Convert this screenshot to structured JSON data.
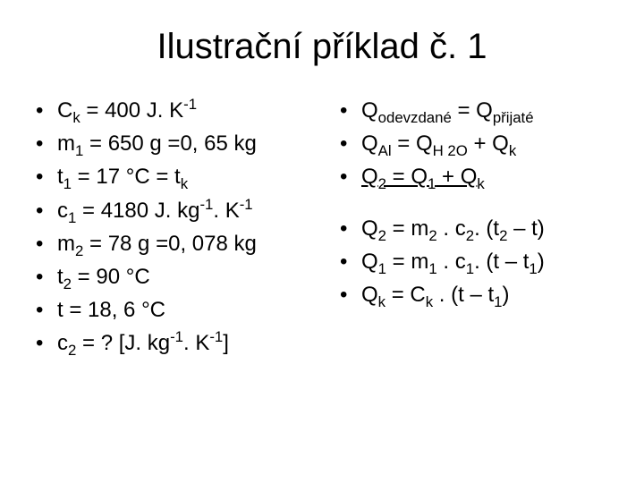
{
  "title": "Ilustrační příklad č. 1",
  "left": {
    "l1": {
      "var": "C",
      "sub": "k",
      "rest": "  = 400 J. K",
      "sup": "-1"
    },
    "l2": {
      "var": "m",
      "sub": "1",
      "rest": " = 650 g =0, 65 kg"
    },
    "l3": {
      "var": "t",
      "sub": "1",
      "rest": "   = 17 °C = t",
      "sub2": "k"
    },
    "l4": {
      "var": "c",
      "sub": "1",
      "rest": "   = 4180 J. kg",
      "sup": "-1",
      "rest2": ". K",
      "sup2": "-1"
    },
    "l5": {
      "var": "m",
      "sub": "2",
      "rest": " = 78 g =0, 078 kg"
    },
    "l6": {
      "var": "t",
      "sub": "2",
      "rest": "   = 90 °C"
    },
    "l7": {
      "var": "t    = 18, 6 °C"
    },
    "l8": {
      "var": "c",
      "sub": "2",
      "rest": "   = ? [J. kg",
      "sup": "-1",
      "rest2": ". K",
      "sup2": "-1",
      "tail": "]"
    }
  },
  "right": {
    "r1": {
      "a": "Q",
      "as": "odevzdané",
      "eq": " = Q",
      "bs": "přijaté"
    },
    "r2": {
      "a": "Q",
      "as": "Al",
      "eq": " = Q",
      "bs": "H 2O",
      "plus": " + Q",
      "cs": "k"
    },
    "r3": {
      "a": "Q",
      "as": "2",
      "eq": " = Q",
      "bs": "1",
      "plus": " + Q",
      "cs": "k"
    },
    "r4": {
      "txt1": "Q",
      "s1": "2",
      "txt2": " = m",
      "s2": "2",
      "txt3": " . c",
      "s3": "2",
      "txt4": ". (t",
      "s4": "2",
      "txt5": " – t)"
    },
    "r5": {
      "txt1": "Q",
      "s1": "1",
      "txt2": " = m",
      "s2": "1",
      "txt3": " . c",
      "s3": "1",
      "txt4": ". (t – t",
      "s4": "1",
      "txt5": ")"
    },
    "r6": {
      "txt1": "Q",
      "s1": "k",
      "txt2": " = C",
      "s2": "k",
      "txt3": " . (t – t",
      "s3": "1",
      "txt4": ")"
    }
  }
}
